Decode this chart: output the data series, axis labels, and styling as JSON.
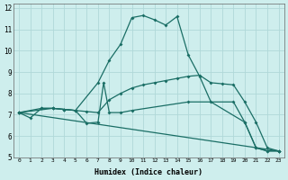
{
  "xlabel": "Humidex (Indice chaleur)",
  "bg_color": "#ceeeed",
  "line_color": "#1a6e65",
  "grid_color": "#b0d8d8",
  "xlim": [
    -0.5,
    23.5
  ],
  "ylim": [
    5,
    12.2
  ],
  "xticks": [
    0,
    1,
    2,
    3,
    4,
    5,
    6,
    7,
    8,
    9,
    10,
    11,
    12,
    13,
    14,
    15,
    16,
    17,
    18,
    19,
    20,
    21,
    22,
    23
  ],
  "yticks": [
    5,
    6,
    7,
    8,
    9,
    10,
    11,
    12
  ],
  "lines": [
    {
      "x": [
        0,
        2,
        3,
        4,
        5,
        7,
        8,
        9,
        10,
        11,
        12,
        13,
        14,
        15,
        16,
        17,
        20,
        21,
        22,
        23
      ],
      "y": [
        7.1,
        7.3,
        7.3,
        7.25,
        7.2,
        8.5,
        9.55,
        10.3,
        11.55,
        11.65,
        11.45,
        11.2,
        11.6,
        9.8,
        8.8,
        7.6,
        6.65,
        5.45,
        5.3,
        5.3
      ]
    },
    {
      "x": [
        0,
        3,
        4,
        5,
        6,
        7,
        8,
        9,
        10,
        11,
        12,
        13,
        14,
        15,
        16,
        17,
        18,
        19,
        20,
        21,
        22,
        23
      ],
      "y": [
        7.1,
        7.3,
        7.25,
        7.2,
        7.15,
        7.1,
        7.7,
        8.0,
        8.25,
        8.4,
        8.5,
        8.6,
        8.7,
        8.8,
        8.85,
        8.5,
        8.45,
        8.4,
        7.6,
        6.65,
        5.45,
        5.3
      ]
    },
    {
      "x": [
        0,
        1,
        2,
        3,
        4,
        5,
        6,
        7,
        7.5,
        8,
        9,
        10,
        15,
        19,
        20,
        21,
        22,
        23
      ],
      "y": [
        7.1,
        6.85,
        7.3,
        7.3,
        7.25,
        7.2,
        6.6,
        6.65,
        8.5,
        7.1,
        7.1,
        7.2,
        7.6,
        7.6,
        6.65,
        5.45,
        5.3,
        5.3
      ]
    },
    {
      "x": [
        0,
        23
      ],
      "y": [
        7.1,
        5.3
      ]
    }
  ]
}
